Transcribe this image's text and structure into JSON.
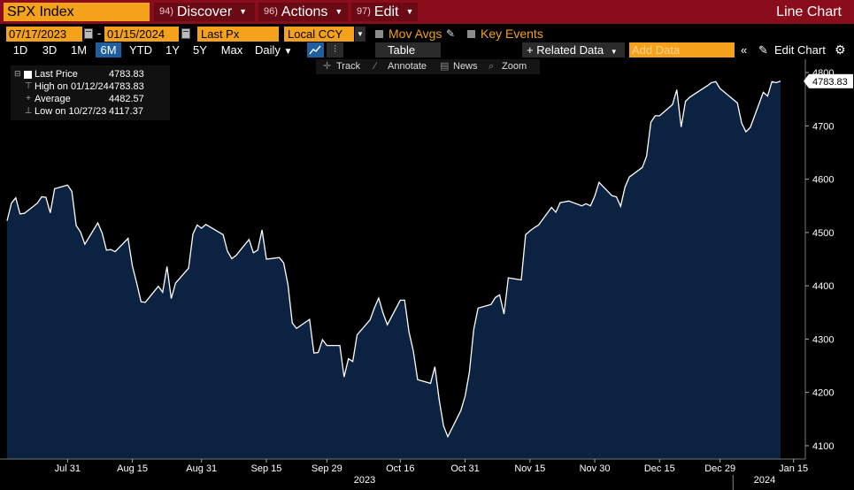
{
  "header": {
    "ticker": "SPX Index",
    "menus": [
      {
        "num": "94)",
        "label": "Discover"
      },
      {
        "num": "96)",
        "label": "Actions"
      },
      {
        "num": "97)",
        "label": "Edit"
      }
    ],
    "view_title": "Line Chart"
  },
  "controls": {
    "start_date": "07/17/2023",
    "end_date": "01/15/2024",
    "date_sep": "-",
    "field": "Last Px",
    "currency": "Local CCY",
    "mov_avgs": "Mov Avgs",
    "key_events": "Key Events"
  },
  "periods": [
    "1D",
    "3D",
    "1M",
    "6M",
    "YTD",
    "1Y",
    "5Y",
    "Max"
  ],
  "active_period": "6M",
  "frequency": "Daily",
  "table_label": "Table",
  "related_data": "+ Related Data",
  "add_data_placeholder": "Add Data",
  "edit_chart": "Edit Chart",
  "tools": [
    {
      "icon": "crosshair-icon",
      "label": "Track"
    },
    {
      "icon": "annotate-icon",
      "label": "Annotate"
    },
    {
      "icon": "news-icon",
      "label": "News"
    },
    {
      "icon": "zoom-icon",
      "label": "Zoom"
    }
  ],
  "legend": [
    {
      "icon": "square",
      "label": "Last Price",
      "value": "4783.83"
    },
    {
      "icon": "high",
      "label": "High on 01/12/24",
      "value": "4783.83"
    },
    {
      "icon": "average",
      "label": "Average",
      "value": "4482.57"
    },
    {
      "icon": "low",
      "label": "Low on 10/27/23",
      "value": "4117.37"
    }
  ],
  "colors": {
    "accent": "#f4a11c",
    "title_bar": "#8a0d1c",
    "fill": "#0b2240",
    "line": "#ffffff",
    "active": "#1f5fa0"
  },
  "chart_data": {
    "type": "area",
    "series": [
      {
        "name": "Last Price",
        "x": [
          "2023-07-17",
          "2023-07-18",
          "2023-07-19",
          "2023-07-20",
          "2023-07-21",
          "2023-07-24",
          "2023-07-25",
          "2023-07-26",
          "2023-07-27",
          "2023-07-28",
          "2023-07-31",
          "2023-08-01",
          "2023-08-02",
          "2023-08-03",
          "2023-08-04",
          "2023-08-07",
          "2023-08-08",
          "2023-08-09",
          "2023-08-10",
          "2023-08-11",
          "2023-08-14",
          "2023-08-15",
          "2023-08-16",
          "2023-08-17",
          "2023-08-18",
          "2023-08-21",
          "2023-08-22",
          "2023-08-23",
          "2023-08-24",
          "2023-08-25",
          "2023-08-28",
          "2023-08-29",
          "2023-08-30",
          "2023-08-31",
          "2023-09-01",
          "2023-09-05",
          "2023-09-06",
          "2023-09-07",
          "2023-09-08",
          "2023-09-11",
          "2023-09-12",
          "2023-09-13",
          "2023-09-14",
          "2023-09-15",
          "2023-09-18",
          "2023-09-19",
          "2023-09-20",
          "2023-09-21",
          "2023-09-22",
          "2023-09-25",
          "2023-09-26",
          "2023-09-27",
          "2023-09-28",
          "2023-09-29",
          "2023-10-02",
          "2023-10-03",
          "2023-10-04",
          "2023-10-05",
          "2023-10-06",
          "2023-10-09",
          "2023-10-10",
          "2023-10-11",
          "2023-10-12",
          "2023-10-13",
          "2023-10-16",
          "2023-10-17",
          "2023-10-18",
          "2023-10-19",
          "2023-10-20",
          "2023-10-23",
          "2023-10-24",
          "2023-10-25",
          "2023-10-26",
          "2023-10-27",
          "2023-10-30",
          "2023-10-31",
          "2023-11-01",
          "2023-11-02",
          "2023-11-03",
          "2023-11-06",
          "2023-11-07",
          "2023-11-08",
          "2023-11-09",
          "2023-11-10",
          "2023-11-13",
          "2023-11-14",
          "2023-11-15",
          "2023-11-16",
          "2023-11-17",
          "2023-11-20",
          "2023-11-21",
          "2023-11-22",
          "2023-11-24",
          "2023-11-27",
          "2023-11-28",
          "2023-11-29",
          "2023-11-30",
          "2023-12-01",
          "2023-12-04",
          "2023-12-05",
          "2023-12-06",
          "2023-12-07",
          "2023-12-08",
          "2023-12-11",
          "2023-12-12",
          "2023-12-13",
          "2023-12-14",
          "2023-12-15",
          "2023-12-18",
          "2023-12-19",
          "2023-12-20",
          "2023-12-21",
          "2023-12-22",
          "2023-12-26",
          "2023-12-27",
          "2023-12-28",
          "2023-12-29",
          "2024-01-02",
          "2024-01-03",
          "2024-01-04",
          "2024-01-05",
          "2024-01-08",
          "2024-01-09",
          "2024-01-10",
          "2024-01-11",
          "2024-01-12"
        ],
        "values": [
          4522,
          4555,
          4565,
          4535,
          4536,
          4555,
          4567,
          4566,
          4537,
          4582,
          4589,
          4577,
          4513,
          4501,
          4478,
          4518,
          4499,
          4467,
          4468,
          4464,
          4489,
          4437,
          4405,
          4370,
          4369,
          4399,
          4388,
          4436,
          4376,
          4405,
          4433,
          4497,
          4514,
          4508,
          4515,
          4496,
          4465,
          4451,
          4457,
          4487,
          4462,
          4467,
          4505,
          4450,
          4453,
          4443,
          4402,
          4330,
          4320,
          4337,
          4274,
          4275,
          4299,
          4288,
          4288,
          4229,
          4263,
          4258,
          4308,
          4336,
          4358,
          4377,
          4349,
          4327,
          4373,
          4373,
          4314,
          4278,
          4224,
          4217,
          4248,
          4186,
          4137,
          4117,
          4166,
          4193,
          4238,
          4318,
          4358,
          4365,
          4378,
          4383,
          4347,
          4415,
          4411,
          4496,
          4503,
          4509,
          4514,
          4547,
          4538,
          4556,
          4559,
          4550,
          4554,
          4550,
          4568,
          4594,
          4569,
          4567,
          4549,
          4585,
          4604,
          4622,
          4643,
          4707,
          4719,
          4719,
          4740,
          4768,
          4698,
          4746,
          4754,
          4775,
          4781,
          4783,
          4770,
          4743,
          4705,
          4689,
          4697,
          4763,
          4756,
          4783,
          4781,
          4783.83
        ]
      }
    ],
    "x_ticks": [
      "Jul 31",
      "Aug 15",
      "Aug 31",
      "Sep 15",
      "Sep 29",
      "Oct 16",
      "Oct 31",
      "Nov 15",
      "Nov 30",
      "Dec 15",
      "Dec 29",
      "Jan 15"
    ],
    "year_labels": [
      "2023",
      "2024"
    ],
    "y_ticks": [
      4100,
      4200,
      4300,
      4400,
      4500,
      4600,
      4700,
      4800
    ],
    "ylim": [
      4075,
      4825
    ],
    "last_value_label": "4783.83",
    "grid": false
  }
}
